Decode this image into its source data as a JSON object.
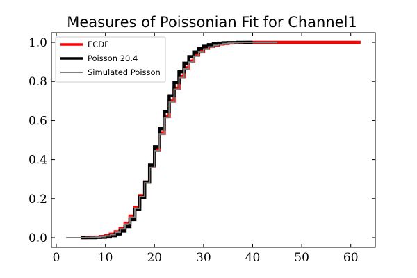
{
  "chart_data": {
    "type": "line",
    "title": "Measures of Poissonian Fit for Channel1",
    "xlabel": "",
    "ylabel": "",
    "xlim": [
      -1,
      65
    ],
    "ylim": [
      -0.05,
      1.05
    ],
    "x_ticks": [
      0,
      10,
      20,
      30,
      40,
      50,
      60
    ],
    "y_ticks": [
      0.0,
      0.2,
      0.4,
      0.6,
      0.8,
      1.0
    ],
    "x_tick_labels": [
      "0",
      "10",
      "20",
      "30",
      "40",
      "50",
      "60"
    ],
    "y_tick_labels": [
      "0.0",
      "0.2",
      "0.4",
      "0.6",
      "0.8",
      "1.0"
    ],
    "grid": false,
    "legend_position": "top-left",
    "step": true,
    "series": [
      {
        "name": "ECDF",
        "color": "#ff0000",
        "x": [
          5,
          6,
          7,
          8,
          9,
          10,
          11,
          12,
          13,
          14,
          15,
          16,
          17,
          18,
          19,
          20,
          21,
          22,
          23,
          24,
          25,
          26,
          27,
          28,
          29,
          30,
          31,
          32,
          33,
          34,
          35,
          36,
          37,
          38,
          39,
          40,
          41,
          42,
          43,
          45,
          62
        ],
        "y": [
          0.0,
          0.001,
          0.002,
          0.003,
          0.006,
          0.01,
          0.018,
          0.03,
          0.048,
          0.074,
          0.11,
          0.155,
          0.215,
          0.285,
          0.365,
          0.45,
          0.535,
          0.62,
          0.7,
          0.765,
          0.825,
          0.87,
          0.905,
          0.935,
          0.955,
          0.97,
          0.98,
          0.987,
          0.992,
          0.995,
          0.997,
          0.998,
          0.999,
          0.9995,
          1.0,
          1.0,
          1.0,
          1.0,
          1.0,
          1.0,
          1.0
        ]
      },
      {
        "name": "Poisson 20.4",
        "color": "#000000",
        "x": [
          5,
          6,
          7,
          8,
          9,
          10,
          11,
          12,
          13,
          14,
          15,
          16,
          17,
          18,
          19,
          20,
          21,
          22,
          23,
          24,
          25,
          26,
          27,
          28,
          29,
          30,
          31,
          32,
          33,
          34,
          35,
          36,
          37,
          38,
          39,
          40
        ],
        "y": [
          0.0,
          0.0,
          0.0,
          0.001,
          0.002,
          0.004,
          0.01,
          0.019,
          0.034,
          0.057,
          0.093,
          0.143,
          0.207,
          0.284,
          0.372,
          0.465,
          0.558,
          0.647,
          0.727,
          0.794,
          0.85,
          0.894,
          0.927,
          0.951,
          0.968,
          0.98,
          0.988,
          0.993,
          0.996,
          0.998,
          0.999,
          0.999,
          1.0,
          1.0,
          1.0,
          1.0
        ]
      },
      {
        "name": "Simulated Poisson",
        "color": "#808080",
        "x": [
          2,
          5,
          6,
          7,
          8,
          9,
          10,
          11,
          12,
          13,
          14,
          15,
          16,
          17,
          18,
          19,
          20,
          21,
          22,
          23,
          24,
          25,
          26,
          27,
          28,
          29,
          30,
          31,
          32,
          33,
          34,
          35,
          36,
          37,
          38,
          39,
          40,
          41,
          42,
          43,
          44,
          45
        ],
        "y": [
          0.0,
          0.0,
          0.001,
          0.002,
          0.003,
          0.005,
          0.009,
          0.016,
          0.028,
          0.045,
          0.07,
          0.105,
          0.15,
          0.21,
          0.28,
          0.36,
          0.445,
          0.53,
          0.615,
          0.695,
          0.76,
          0.82,
          0.865,
          0.9,
          0.93,
          0.95,
          0.966,
          0.977,
          0.985,
          0.99,
          0.994,
          0.996,
          0.998,
          0.999,
          1.0,
          1.0,
          1.0,
          1.0,
          1.0,
          1.0,
          1.0,
          1.0
        ]
      }
    ]
  }
}
